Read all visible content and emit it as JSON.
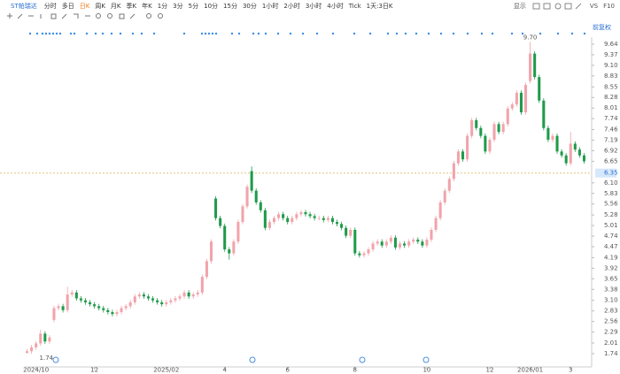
{
  "toolbar": {
    "symbol": "ST帕瑞达",
    "periods": [
      "分时",
      "多日",
      "日K",
      "周K",
      "月K",
      "季K",
      "年K",
      "1分",
      "3分",
      "5分",
      "10分",
      "15分",
      "30分",
      "1小时",
      "2小时",
      "3小时",
      "4小时",
      "Tick",
      "1天:3日K"
    ],
    "selected_period": 2,
    "display": "显示",
    "vs": "VS",
    "f10": "F10"
  },
  "adjust": "前复权",
  "chart_data": {
    "type": "candlestick",
    "x": [
      0,
      1,
      2,
      3,
      4,
      5,
      6,
      7,
      8,
      9,
      10,
      11,
      12,
      13,
      14,
      15,
      16,
      17,
      18,
      19,
      20,
      21,
      22,
      23,
      24,
      25,
      26,
      27,
      28,
      29,
      30,
      31,
      32,
      33,
      34,
      35,
      36,
      37,
      38,
      39,
      40,
      41,
      42,
      43,
      44,
      45,
      46,
      47,
      48,
      49,
      50,
      51,
      52,
      53,
      54,
      55,
      56,
      57,
      58,
      59,
      60,
      61,
      62,
      63,
      64,
      65,
      66,
      67,
      68,
      69,
      70,
      71,
      72,
      73,
      74,
      75,
      76,
      77,
      78,
      79,
      80,
      81,
      82,
      83,
      84,
      85,
      86,
      87,
      88,
      89,
      90,
      91,
      92,
      93,
      94,
      95,
      96,
      97,
      98,
      99,
      100,
      101,
      102,
      103,
      104,
      105,
      106,
      107,
      108,
      109,
      110,
      111,
      112,
      113,
      114,
      115,
      116,
      117,
      118,
      119,
      120,
      121,
      122,
      123,
      124
    ],
    "open": [
      1.76,
      1.8,
      1.9,
      2.0,
      2.25,
      2.05,
      2.6,
      2.9,
      2.95,
      2.85,
      3.25,
      3.3,
      3.15,
      3.1,
      3.05,
      3.0,
      2.95,
      2.9,
      2.85,
      2.8,
      2.75,
      2.8,
      2.9,
      2.95,
      3.05,
      3.2,
      3.25,
      3.2,
      3.15,
      3.1,
      3.05,
      3.0,
      3.05,
      3.1,
      3.15,
      3.2,
      3.3,
      3.2,
      3.25,
      3.3,
      3.7,
      4.1,
      5.7,
      5.2,
      5.0,
      4.4,
      4.3,
      4.6,
      5.1,
      5.5,
      6.4,
      5.9,
      5.6,
      5.4,
      4.95,
      5.1,
      5.2,
      5.3,
      5.2,
      5.1,
      5.2,
      5.3,
      5.35,
      5.3,
      5.25,
      5.2,
      5.2,
      5.15,
      5.2,
      5.1,
      5.05,
      4.95,
      4.75,
      4.9,
      4.3,
      4.25,
      4.3,
      4.4,
      4.55,
      4.6,
      4.5,
      4.6,
      4.7,
      4.45,
      4.55,
      4.5,
      4.6,
      4.65,
      4.6,
      4.5,
      4.65,
      4.9,
      5.2,
      5.6,
      5.9,
      6.2,
      6.6,
      6.9,
      6.7,
      7.3,
      7.7,
      7.5,
      7.3,
      6.9,
      7.2,
      7.6,
      7.4,
      7.6,
      8.0,
      8.1,
      8.4,
      7.9,
      8.7,
      9.4,
      8.8,
      8.2,
      7.5,
      7.2,
      7.3,
      6.9,
      6.8,
      6.6,
      7.1,
      6.95,
      6.8
    ],
    "high": [
      1.86,
      1.96,
      2.06,
      2.35,
      2.31,
      2.21,
      2.96,
      3.01,
      3.01,
      3.45,
      3.36,
      3.36,
      3.21,
      3.16,
      3.11,
      3.06,
      3.01,
      2.96,
      2.91,
      2.86,
      2.86,
      2.96,
      3.01,
      3.11,
      3.26,
      3.31,
      3.31,
      3.26,
      3.21,
      3.16,
      3.11,
      3.11,
      3.16,
      3.21,
      3.26,
      3.36,
      3.36,
      3.31,
      3.36,
      3.76,
      4.16,
      4.66,
      5.76,
      5.26,
      5.06,
      4.46,
      4.66,
      5.16,
      5.56,
      6.06,
      6.52,
      5.96,
      5.66,
      5.46,
      5.16,
      5.26,
      5.36,
      5.36,
      5.26,
      5.26,
      5.36,
      5.41,
      5.41,
      5.36,
      5.31,
      5.26,
      5.26,
      5.26,
      5.26,
      5.16,
      5.11,
      5.01,
      4.96,
      4.96,
      4.36,
      4.36,
      4.46,
      4.61,
      4.66,
      4.66,
      4.66,
      4.76,
      4.76,
      4.61,
      4.61,
      4.66,
      4.71,
      4.71,
      4.66,
      4.71,
      4.96,
      5.26,
      5.66,
      5.96,
      6.26,
      6.66,
      6.96,
      6.96,
      7.36,
      7.76,
      7.76,
      7.56,
      7.36,
      7.26,
      7.66,
      7.66,
      7.66,
      8.06,
      8.16,
      8.46,
      8.46,
      8.66,
      9.7,
      9.46,
      8.86,
      8.26,
      7.56,
      7.36,
      7.36,
      6.96,
      6.86,
      7.4,
      7.16,
      7.01,
      6.86
    ],
    "low": [
      1.74,
      1.74,
      1.84,
      1.94,
      1.99,
      1.99,
      2.54,
      2.84,
      2.79,
      2.79,
      3.19,
      3.09,
      3.04,
      2.99,
      2.94,
      2.89,
      2.84,
      2.79,
      2.74,
      2.69,
      2.69,
      2.74,
      2.84,
      2.89,
      2.99,
      3.14,
      3.14,
      3.09,
      3.04,
      2.99,
      2.94,
      2.94,
      2.99,
      3.04,
      3.09,
      3.14,
      3.14,
      3.14,
      3.19,
      3.24,
      3.64,
      4.04,
      5.14,
      4.94,
      4.34,
      4.14,
      4.24,
      4.54,
      5.04,
      5.44,
      5.84,
      5.54,
      5.34,
      4.89,
      4.89,
      5.04,
      5.14,
      5.14,
      5.04,
      5.04,
      5.14,
      5.24,
      5.24,
      5.19,
      5.14,
      5.14,
      5.09,
      5.09,
      5.04,
      4.99,
      4.89,
      4.69,
      4.69,
      4.24,
      4.19,
      4.19,
      4.24,
      4.34,
      4.49,
      4.44,
      4.44,
      4.54,
      4.39,
      4.39,
      4.44,
      4.44,
      4.54,
      4.54,
      4.44,
      4.44,
      4.59,
      4.84,
      5.14,
      5.54,
      5.84,
      6.14,
      6.54,
      6.64,
      6.64,
      7.24,
      7.44,
      7.24,
      6.84,
      6.84,
      7.14,
      7.34,
      7.34,
      7.54,
      7.94,
      8.04,
      7.84,
      7.84,
      8.64,
      8.74,
      8.14,
      7.44,
      7.14,
      7.14,
      6.84,
      6.74,
      6.54,
      6.54,
      6.89,
      6.74,
      6.59
    ],
    "close": [
      1.8,
      1.9,
      2.0,
      2.25,
      2.05,
      2.15,
      2.9,
      2.95,
      2.85,
      3.25,
      3.3,
      3.15,
      3.1,
      3.05,
      3.0,
      2.95,
      2.9,
      2.85,
      2.8,
      2.75,
      2.8,
      2.9,
      2.95,
      3.05,
      3.2,
      3.25,
      3.2,
      3.15,
      3.1,
      3.05,
      3.0,
      3.05,
      3.1,
      3.15,
      3.2,
      3.3,
      3.2,
      3.25,
      3.3,
      3.7,
      4.1,
      4.6,
      5.2,
      5.0,
      4.4,
      4.3,
      4.6,
      5.1,
      5.5,
      6.0,
      5.9,
      5.6,
      5.4,
      4.95,
      5.1,
      5.2,
      5.3,
      5.2,
      5.1,
      5.2,
      5.3,
      5.35,
      5.3,
      5.25,
      5.2,
      5.2,
      5.15,
      5.2,
      5.1,
      5.05,
      4.95,
      4.75,
      4.9,
      4.3,
      4.25,
      4.3,
      4.4,
      4.55,
      4.6,
      4.5,
      4.6,
      4.7,
      4.45,
      4.55,
      4.5,
      4.6,
      4.65,
      4.6,
      4.5,
      4.65,
      4.9,
      5.2,
      5.6,
      5.9,
      6.2,
      6.6,
      6.9,
      6.7,
      7.3,
      7.7,
      7.5,
      7.3,
      6.9,
      7.2,
      7.6,
      7.4,
      7.6,
      8.0,
      8.1,
      8.4,
      7.9,
      8.6,
      9.4,
      8.8,
      8.2,
      7.5,
      7.2,
      7.3,
      6.9,
      6.8,
      6.6,
      7.1,
      6.95,
      6.8,
      6.65
    ],
    "up_color": "#f2a3ab",
    "down_color": "#1f9a4a",
    "xlim": [
      -0.5,
      124.5
    ],
    "xticks": [
      {
        "value": 2,
        "label": "2024/10"
      },
      {
        "value": 15,
        "label": "12"
      },
      {
        "value": 31,
        "label": "2025/02"
      },
      {
        "value": 44,
        "label": "4"
      },
      {
        "value": 58,
        "label": "6"
      },
      {
        "value": 73,
        "label": "8"
      },
      {
        "value": 89,
        "label": "10"
      },
      {
        "value": 103,
        "label": "12"
      },
      {
        "value": 112,
        "label": "2026/01"
      },
      {
        "value": 121,
        "label": "3"
      }
    ],
    "ylim": [
      1.4,
      9.82
    ],
    "yticks": [
      9.64,
      9.37,
      {
        "value": 9.1,
        "label": "9.10"
      },
      8.83,
      8.55,
      8.28,
      8.01,
      7.74,
      7.46,
      7.19,
      6.92,
      6.65,
      {
        "value": 6.1,
        "label": "6.10"
      },
      5.83,
      5.56,
      5.28,
      5.01,
      4.74,
      4.47,
      4.19,
      3.92,
      3.65,
      3.38,
      {
        "value": 3.1,
        "label": "3.10"
      },
      2.83,
      2.56,
      2.29,
      2.01,
      1.74
    ],
    "reference_line": 6.35,
    "reference_color": "#e2c27a",
    "max_label": "9.70",
    "min_label": "1.74"
  }
}
